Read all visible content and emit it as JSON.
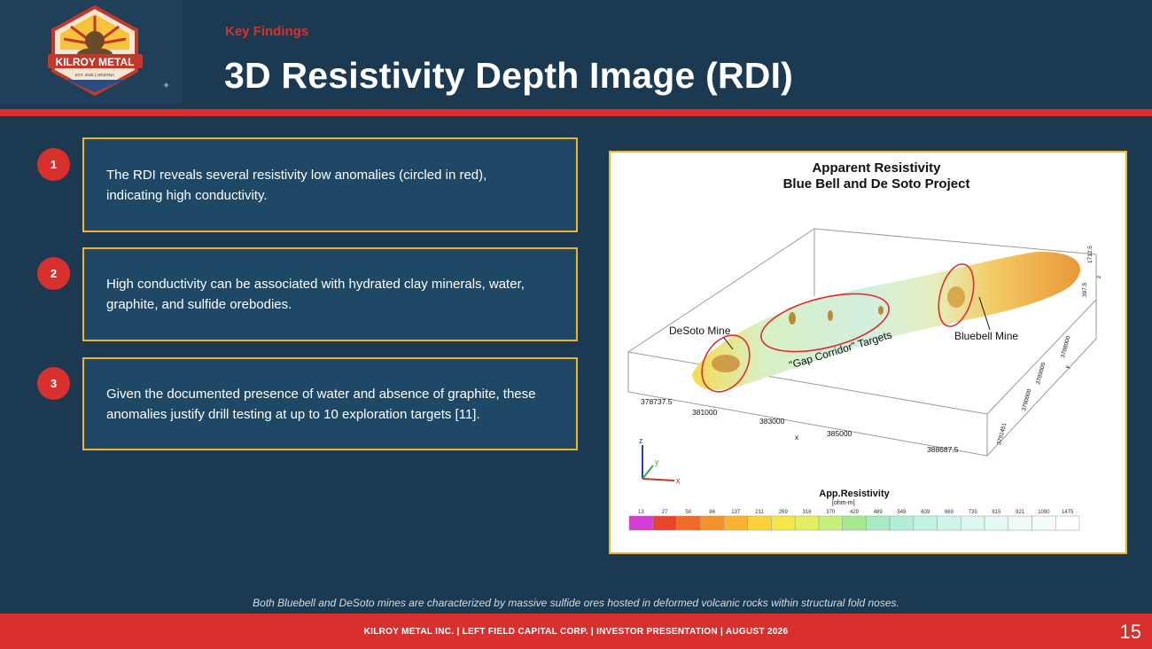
{
  "logo": {
    "name": "KILROY METAL",
    "tagline": "EST. 2025 | ARIZONA"
  },
  "header": {
    "eyebrow": "Key Findings",
    "title": "3D Resistivity Depth Image (RDI)"
  },
  "findings": [
    {
      "number": "1",
      "text": "The RDI reveals several resistivity low anomalies (circled in red), indicating high conductivity."
    },
    {
      "number": "2",
      "text": "High conductivity can be associated with hydrated clay minerals, water, graphite, and sulfide orebodies."
    },
    {
      "number": "3",
      "text": "Given the documented presence of water and absence of graphite, these anomalies justify drill testing at up to 10 exploration targets [11]."
    }
  ],
  "figure": {
    "title_line1": "Apparent Resistivity",
    "title_line2": "Blue Bell and De Soto Project",
    "labels": {
      "desoto": "DeSoto Mine",
      "gap": "\"Gap Corridor\" Targets",
      "bluebell": "Bluebell Mine"
    },
    "x_axis_title": "x",
    "x_ticks": [
      "378737.5",
      "381000",
      "383000",
      "385000",
      "388687.5"
    ],
    "y_axis_title": "y",
    "y_ticks": [
      "3791451",
      "3790000",
      "3789000",
      "3788000"
    ],
    "z_axis_title": "z",
    "z_ticks": [
      "1712.5",
      "397.5"
    ],
    "axis_triad": {
      "z": "z",
      "y": "y",
      "x": "x"
    },
    "colorbar": {
      "title": "App.Resistivity",
      "unit": "[ohm-m]",
      "ticks": [
        "13",
        "27",
        "50",
        "86",
        "137",
        "211",
        "269",
        "316",
        "370",
        "429",
        "489",
        "549",
        "609",
        "669",
        "735",
        "815",
        "921",
        "1090",
        "1475"
      ],
      "colors": [
        "#d63bd6",
        "#e8452c",
        "#f06a28",
        "#f5922c",
        "#f9b233",
        "#fbd23a",
        "#f6e84a",
        "#e4f062",
        "#c6ee7a",
        "#a9e98e",
        "#a6ecc0",
        "#b2efd6",
        "#c2f2e3",
        "#d0f4ec",
        "#dcf6f1",
        "#e5f8f5",
        "#eef9f8",
        "#f4fbfb",
        "#ffffff"
      ]
    }
  },
  "caption": "Both Bluebell and DeSoto mines are characterized by massive sulfide ores hosted in deformed volcanic rocks within structural fold noses.",
  "footer": {
    "text": "KILROY METAL INC. | LEFT FIELD CAPITAL CORP. | INVESTOR PRESENTATION | AUGUST 2026",
    "page": "15"
  }
}
